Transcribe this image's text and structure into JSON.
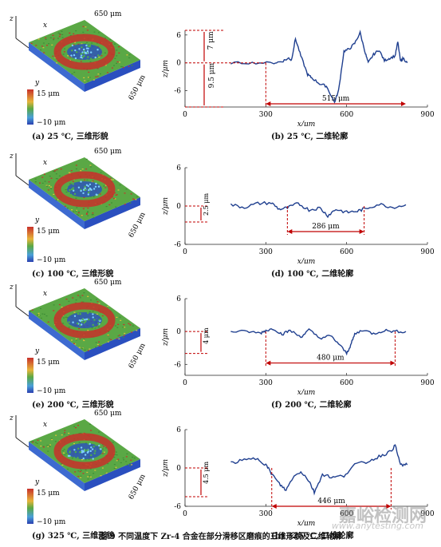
{
  "panels": [
    {
      "cap3d": "(a) 25 ℃, 三维形貌",
      "cap2d": "(b) 25 ℃, 二维轮廓",
      "size_top": "650 μm",
      "size_right": "650 μm",
      "cb_max": "15 μm",
      "cb_min": "−10 μm",
      "dim_width": "515 μm",
      "dim_up": "7 μm",
      "dim_down": "9.5 μm"
    },
    {
      "cap3d": "(c) 100 ℃, 三维形貌",
      "cap2d": "(d) 100 ℃, 二维轮廓",
      "size_top": "650 μm",
      "size_right": "650 μm",
      "cb_max": "15 μm",
      "cb_min": "−10 μm",
      "dim_width": "286 μm",
      "dim_depth": "2.5 μm"
    },
    {
      "cap3d": "(e) 200 ℃, 三维形貌",
      "cap2d": "(f) 200 ℃, 二维轮廓",
      "size_top": "650 μm",
      "size_right": "650 μm",
      "cb_max": "15 μm",
      "cb_min": "−10 μm",
      "dim_width": "480 μm",
      "dim_depth": "4 μm"
    },
    {
      "cap3d": "(g) 325 ℃, 三维形貌",
      "cap2d": "(h) 325 ℃, 二维轮廓",
      "size_top": "650 μm",
      "size_right": "650 μm",
      "cb_max": "15 μm",
      "cb_min": "−10 μm",
      "dim_width": "446 μm",
      "dim_depth": "4.5 μm"
    }
  ],
  "axis_labels": {
    "x": "x",
    "y": "y",
    "z": "z",
    "xlabel": "x/μm",
    "ylabel": "z/μm"
  },
  "figure_caption": "图 9   不同温度下 Zr-4 合金在部分滑移区磨痕的三维形貌及二维轮廓",
  "watermark": "嘉峪检测网",
  "watermark_url": "www.anytesting.com",
  "colors": {
    "profile": "#1f3f8f",
    "dimension": "#c00000",
    "surface_green": "#5aa845",
    "surface_red": "#c8302a",
    "surface_blue": "#2a4fbf"
  },
  "chart_data": [
    {
      "type": "line",
      "panel": "b",
      "xlabel": "x/μm",
      "ylabel": "z/μm",
      "xlim": [
        0,
        900
      ],
      "ylim": [
        -9.5,
        7
      ],
      "xticks": [
        0,
        300,
        600,
        900
      ],
      "yticks": [
        -6,
        0,
        6
      ],
      "x": [
        170,
        250,
        330,
        360,
        385,
        395,
        410,
        430,
        455,
        470,
        500,
        525,
        555,
        570,
        590,
        610,
        630,
        650,
        670,
        680,
        700,
        720,
        740,
        760,
        780,
        790,
        800,
        810,
        825
      ],
      "y": [
        0,
        0,
        0,
        0.3,
        1.0,
        0.6,
        5.2,
        1.5,
        -2.5,
        -3.2,
        -4.5,
        -5.0,
        -8.5,
        -6.0,
        2.5,
        3.0,
        4.2,
        6.5,
        2.0,
        0,
        1.8,
        2.8,
        0.5,
        1.0,
        1.5,
        4.5,
        0.3,
        1.0,
        0
      ]
    },
    {
      "type": "line",
      "panel": "d",
      "xlabel": "x/μm",
      "ylabel": "z/μm",
      "xlim": [
        0,
        900
      ],
      "ylim": [
        -6,
        6
      ],
      "xticks": [
        0,
        300,
        600,
        900
      ],
      "yticks": [
        -6,
        0,
        6
      ],
      "x": [
        170,
        220,
        270,
        320,
        350,
        380,
        420,
        460,
        500,
        530,
        560,
        600,
        640,
        670,
        720,
        770,
        820
      ],
      "y": [
        0.2,
        -0.2,
        0.4,
        0.5,
        -0.5,
        -0.3,
        0.4,
        -0.6,
        -0.3,
        -1.5,
        -0.5,
        -1.0,
        -0.8,
        -0.4,
        0.3,
        -0.2,
        0.2
      ]
    },
    {
      "type": "line",
      "panel": "f",
      "xlabel": "x/μm",
      "ylabel": "z/μm",
      "xlim": [
        0,
        900
      ],
      "ylim": [
        -8,
        6
      ],
      "xticks": [
        0,
        300,
        600,
        900
      ],
      "yticks": [
        -6,
        0,
        6
      ],
      "x": [
        170,
        230,
        280,
        300,
        330,
        360,
        390,
        430,
        460,
        500,
        540,
        570,
        600,
        615,
        630,
        660,
        700,
        740,
        780,
        820
      ],
      "y": [
        0,
        0,
        -0.3,
        0.2,
        0.5,
        -0.5,
        0.2,
        -1.0,
        0.3,
        -1.2,
        -0.8,
        -2.2,
        -4.0,
        -2.5,
        -0.5,
        0.3,
        -0.4,
        0.2,
        0,
        0
      ]
    },
    {
      "type": "line",
      "panel": "h",
      "xlabel": "x/μm",
      "ylabel": "z/μm",
      "xlim": [
        0,
        900
      ],
      "ylim": [
        -6,
        6
      ],
      "xticks": [
        0,
        300,
        600,
        900
      ],
      "yticks": [
        -6,
        0,
        6
      ],
      "x": [
        170,
        220,
        270,
        300,
        320,
        350,
        375,
        400,
        430,
        460,
        480,
        510,
        550,
        590,
        630,
        680,
        720,
        760,
        780,
        800,
        825
      ],
      "y": [
        0.8,
        1.2,
        1.5,
        0.5,
        -0.8,
        -2.5,
        -3.5,
        -1.5,
        -0.5,
        -2.0,
        -3.8,
        -1.0,
        -1.5,
        -1.2,
        0.5,
        1.0,
        1.8,
        2.5,
        3.5,
        0.5,
        0.5
      ]
    }
  ]
}
